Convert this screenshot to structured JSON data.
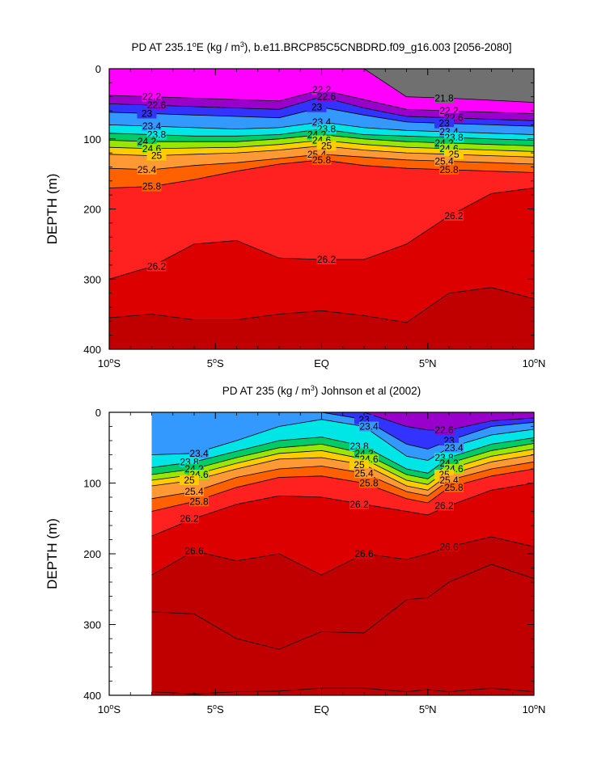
{
  "chart_data": [
    {
      "type": "contour",
      "title": "PD AT 235.1°E (kg / m³), b.e11.BRCP85C5CNBDRD.f09_g16.003 [2056-2080]",
      "title_parts": {
        "pre": "PD AT 235.1",
        "deg": "o",
        "post": "E (kg / m",
        "sup": "3",
        "tail": "), b.e11.BRCP85C5CNBDRD.f09_g16.003 [2056-2080]"
      },
      "ylabel": "DEPTH (m)",
      "xlabel": "",
      "xlim": [
        -10,
        10
      ],
      "ylim": [
        400,
        0
      ],
      "x_ticks": [
        -10,
        -5,
        0,
        5,
        10
      ],
      "x_tick_labels": [
        {
          "num": "10",
          "deg": "o",
          "hem": "S"
        },
        {
          "num": "5",
          "deg": "o",
          "hem": "S"
        },
        {
          "num": "EQ",
          "deg": "",
          "hem": ""
        },
        {
          "num": "5",
          "deg": "o",
          "hem": "N"
        },
        {
          "num": "10",
          "deg": "o",
          "hem": "N"
        }
      ],
      "y_ticks": [
        0,
        100,
        200,
        300,
        400
      ],
      "y_tick_labels": [
        "0",
        "100",
        "200",
        "300",
        "400"
      ],
      "x_data_start": -10,
      "contour_interval": 0.2,
      "isopycnal_depths": {
        "x": [
          -10,
          -8,
          -6,
          -4,
          -2,
          0,
          2,
          4,
          6,
          8,
          10
        ],
        "21.8": [
          0,
          0,
          0,
          0,
          0,
          0,
          0,
          40,
          42,
          45,
          48
        ],
        "22.2": [
          38,
          40,
          42,
          44,
          46,
          30,
          44,
          58,
          60,
          62,
          64
        ],
        "22.6": [
          50,
          52,
          54,
          56,
          58,
          40,
          56,
          68,
          70,
          72,
          74
        ],
        "23": [
          62,
          64,
          66,
          68,
          70,
          55,
          66,
          76,
          78,
          80,
          82
        ],
        "23.4": [
          80,
          82,
          84,
          86,
          84,
          76,
          84,
          88,
          90,
          92,
          94
        ],
        "23.8": [
          92,
          94,
          96,
          96,
          94,
          86,
          94,
          96,
          98,
          100,
          102
        ],
        "24.2": [
          102,
          104,
          104,
          104,
          100,
          94,
          100,
          104,
          106,
          108,
          110
        ],
        "24.6": [
          112,
          114,
          113,
          112,
          108,
          102,
          108,
          112,
          114,
          116,
          118
        ],
        "25": [
          122,
          124,
          122,
          120,
          116,
          110,
          116,
          120,
          122,
          124,
          126
        ],
        "25.4": [
          142,
          144,
          138,
          134,
          128,
          122,
          126,
          130,
          132,
          134,
          136
        ],
        "25.8": [
          170,
          168,
          158,
          146,
          136,
          130,
          138,
          142,
          144,
          146,
          148
        ],
        "26.2": [
          300,
          282,
          250,
          245,
          270,
          272,
          272,
          250,
          210,
          178,
          170
        ],
        "26.6": [
          355,
          350,
          358,
          358,
          350,
          345,
          352,
          362,
          320,
          312,
          328
        ]
      },
      "contour_labels": [
        "21.8",
        "22.2",
        "22.6",
        "23",
        "23.4",
        "23.8",
        "24.2",
        "24.6",
        "25",
        "25.4",
        "25.8",
        "26.2"
      ]
    },
    {
      "type": "contour",
      "title": "PD AT 235 (kg / m³) Johnson et al (2002)",
      "title_parts": {
        "pre": "PD AT 235 (kg / m",
        "deg": "",
        "post": "",
        "sup": "3",
        "tail": ") Johnson et al (2002)"
      },
      "ylabel": "DEPTH (m)",
      "xlabel": "",
      "xlim": [
        -10,
        10
      ],
      "ylim": [
        400,
        0
      ],
      "x_ticks": [
        -10,
        -5,
        0,
        5,
        10
      ],
      "x_tick_labels": [
        {
          "num": "10",
          "deg": "o",
          "hem": "S"
        },
        {
          "num": "5",
          "deg": "o",
          "hem": "S"
        },
        {
          "num": "EQ",
          "deg": "",
          "hem": ""
        },
        {
          "num": "5",
          "deg": "o",
          "hem": "N"
        },
        {
          "num": "10",
          "deg": "o",
          "hem": "N"
        }
      ],
      "y_ticks": [
        0,
        100,
        200,
        300,
        400
      ],
      "y_tick_labels": [
        "0",
        "100",
        "200",
        "300",
        "400"
      ],
      "x_data_start": -8,
      "contour_interval": 0.2,
      "isopycnal_depths": {
        "x": [
          -8,
          -6,
          -4,
          -2,
          0,
          2,
          4,
          5,
          6,
          8,
          10
        ],
        "22.6": [
          0,
          0,
          0,
          0,
          0,
          0,
          20,
          25,
          25,
          12,
          8
        ],
        "23": [
          0,
          0,
          0,
          0,
          0,
          10,
          45,
          52,
          40,
          20,
          14
        ],
        "23.4": [
          60,
          58,
          40,
          20,
          10,
          20,
          62,
          68,
          50,
          32,
          24
        ],
        "23.8": [
          78,
          70,
          55,
          40,
          35,
          48,
          80,
          86,
          64,
          45,
          36
        ],
        "24.2": [
          88,
          80,
          64,
          50,
          45,
          58,
          88,
          94,
          72,
          54,
          44
        ],
        "24.6": [
          96,
          88,
          72,
          58,
          54,
          66,
          96,
          102,
          80,
          62,
          52
        ],
        "25": [
          104,
          96,
          80,
          66,
          64,
          74,
          104,
          110,
          88,
          70,
          60
        ],
        "25.4": [
          122,
          112,
          92,
          80,
          76,
          86,
          112,
          118,
          96,
          80,
          70
        ],
        "25.8": [
          140,
          126,
          106,
          92,
          90,
          100,
          122,
          128,
          106,
          90,
          80
        ],
        "26.2": [
          175,
          150,
          130,
          118,
          120,
          130,
          140,
          145,
          132,
          110,
          100
        ],
        "26.6": [
          230,
          196,
          210,
          200,
          230,
          200,
          208,
          200,
          190,
          176,
          190
        ],
        "27": [
          282,
          285,
          320,
          335,
          310,
          312,
          265,
          262,
          240,
          215,
          235
        ],
        "27.4": [
          395,
          398,
          395,
          394,
          390,
          390,
          395,
          392,
          395,
          390,
          395
        ]
      },
      "contour_labels": [
        "22.6",
        "23",
        "23.4",
        "23.8",
        "24.2",
        "24.6",
        "25",
        "25.4",
        "25.8",
        "26.2",
        "26.6"
      ]
    }
  ],
  "colors": {
    "band_light_to_dense": [
      "#ffffff",
      "#707070",
      "#a8a8a8",
      "#ff00ff",
      "#cc00cc",
      "#9900cc",
      "#6600ff",
      "#3333ff",
      "#1a66ff",
      "#3399ff",
      "#33ccff",
      "#00e6e6",
      "#00cc99",
      "#00cc66",
      "#33cc00",
      "#99e600",
      "#e6e600",
      "#ffcc00",
      "#ffb347",
      "#ff9933",
      "#ff8000",
      "#ff6000",
      "#ff4000",
      "#ff2020",
      "#ee1010",
      "#dd0000",
      "#c00000"
    ],
    "contour_line": "#000000"
  }
}
